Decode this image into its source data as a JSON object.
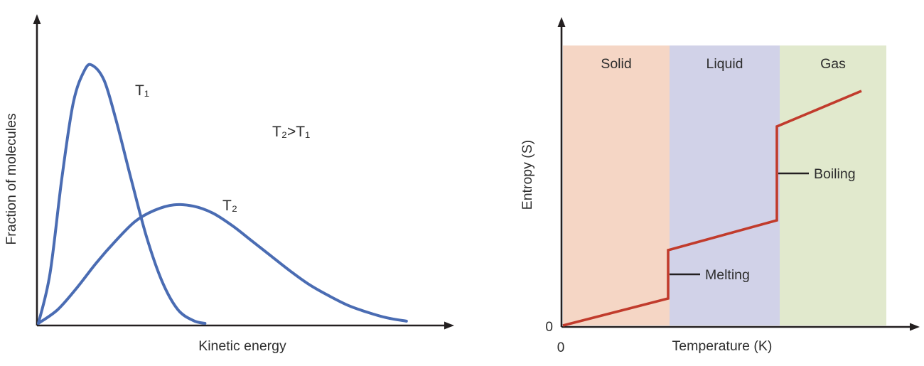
{
  "style": {
    "background": "#ffffff",
    "text_color": "#2d2d2d",
    "axis_color": "#231f20"
  },
  "chart_data": [
    {
      "type": "line",
      "title": "",
      "xlabel": "Kinetic energy",
      "ylabel": "Fraction of molecules",
      "annotation": "T₂>T₁",
      "line_color": "#4a6cb3",
      "x_range": [
        0,
        100
      ],
      "y_range": [
        0,
        1
      ],
      "grid": false,
      "legend_position": "inline-curve-labels",
      "series": [
        {
          "name": "T₁",
          "x": [
            0,
            3,
            6,
            9,
            12,
            14,
            17,
            20,
            24,
            28,
            32,
            36,
            40,
            43
          ],
          "y": [
            0,
            0.18,
            0.52,
            0.8,
            0.92,
            0.935,
            0.88,
            0.74,
            0.52,
            0.31,
            0.15,
            0.05,
            0.01,
            0
          ]
        },
        {
          "name": "T₂",
          "x": [
            0,
            5,
            10,
            15,
            20,
            25,
            30,
            35,
            40,
            45,
            50,
            55,
            60,
            65,
            70,
            75,
            80,
            85,
            90,
            95
          ],
          "y": [
            0,
            0.05,
            0.13,
            0.22,
            0.3,
            0.37,
            0.41,
            0.43,
            0.425,
            0.4,
            0.355,
            0.3,
            0.245,
            0.19,
            0.14,
            0.1,
            0.065,
            0.04,
            0.02,
            0.008
          ]
        }
      ]
    },
    {
      "type": "line",
      "title": "",
      "xlabel": "Temperature (K)",
      "ylabel": "Entropy (S)",
      "origin_x_label": "0",
      "origin_y_label": "0",
      "line_color": "#c13b2c",
      "x_range": [
        0,
        1
      ],
      "y_range": [
        0,
        1
      ],
      "grid": false,
      "regions": [
        {
          "label": "Solid",
          "x0": 0.004,
          "x1": 0.304,
          "color": "#f5d6c5"
        },
        {
          "label": "Liquid",
          "x0": 0.304,
          "x1": 0.614,
          "color": "#d1d2e8"
        },
        {
          "label": "Gas",
          "x0": 0.614,
          "x1": 0.914,
          "color": "#e1e9cd"
        }
      ],
      "line_points": [
        [
          0.004,
          0.005
        ],
        [
          0.3,
          0.1
        ],
        [
          0.3,
          0.27
        ],
        [
          0.606,
          0.375
        ],
        [
          0.606,
          0.705
        ],
        [
          0.844,
          0.83
        ]
      ],
      "transitions": [
        {
          "label": "Melting",
          "x": 0.3,
          "y": 0.185
        },
        {
          "label": "Boiling",
          "x": 0.606,
          "y": 0.54
        }
      ]
    }
  ]
}
